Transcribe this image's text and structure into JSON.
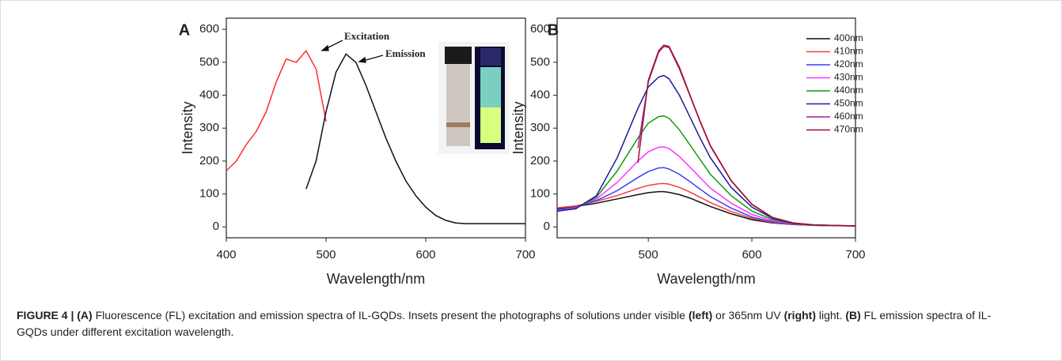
{
  "chart_data": [
    {
      "type": "line",
      "panel": "A",
      "xlabel": "Wavelength/nm",
      "ylabel": "Intensity",
      "x": [
        400,
        410,
        420,
        430,
        440,
        450,
        460,
        470,
        480,
        490,
        500,
        510,
        520,
        530,
        540,
        550,
        560,
        570,
        580,
        590,
        600,
        610,
        620,
        630,
        640,
        650,
        660,
        670,
        680,
        690,
        700
      ],
      "series": [
        {
          "name": "Excitation",
          "color": "#ff2a2a",
          "values": [
            170,
            200,
            250,
            290,
            350,
            440,
            510,
            500,
            535,
            480,
            320,
            null,
            null,
            null,
            null,
            null,
            null,
            null,
            null,
            null,
            null,
            null,
            null,
            null,
            null,
            null,
            null,
            null,
            null,
            null,
            null
          ]
        },
        {
          "name": "Emission",
          "color": "#111111",
          "values": [
            null,
            null,
            null,
            null,
            null,
            null,
            null,
            null,
            115,
            200,
            350,
            470,
            525,
            500,
            430,
            350,
            270,
            200,
            140,
            95,
            60,
            35,
            20,
            12,
            10,
            10,
            10,
            10,
            10,
            10,
            10
          ]
        }
      ],
      "xlim": [
        400,
        700
      ],
      "xticks": [
        400,
        500,
        600,
        700
      ],
      "ylim": [
        -33,
        634
      ],
      "yticks": [
        0,
        100,
        200,
        300,
        400,
        500,
        600
      ]
    },
    {
      "type": "line",
      "panel": "B",
      "xlabel": "Wavelength/nm",
      "ylabel": "Intensity",
      "x": [
        412,
        430,
        450,
        470,
        490,
        500,
        510,
        515,
        520,
        530,
        540,
        550,
        560,
        580,
        600,
        620,
        640,
        660,
        700
      ],
      "series": [
        {
          "name": "400nm",
          "color": "#111111",
          "values": [
            55,
            62,
            72,
            85,
            98,
            104,
            107,
            107,
            105,
            98,
            88,
            75,
            62,
            40,
            22,
            12,
            7,
            5,
            3
          ]
        },
        {
          "name": "410nm",
          "color": "#ff3b3b",
          "values": [
            58,
            64,
            78,
            95,
            117,
            126,
            131,
            132,
            130,
            120,
            106,
            90,
            74,
            47,
            26,
            13,
            7,
            5,
            3
          ]
        },
        {
          "name": "420nm",
          "color": "#3a3aff",
          "values": [
            52,
            60,
            80,
            110,
            150,
            168,
            179,
            180,
            176,
            160,
            138,
            115,
            92,
            57,
            30,
            15,
            8,
            5,
            3
          ]
        },
        {
          "name": "430nm",
          "color": "#ff33ff",
          "values": [
            50,
            58,
            85,
            135,
            200,
            228,
            242,
            243,
            238,
            214,
            182,
            150,
            118,
            72,
            38,
            18,
            9,
            5,
            3
          ]
        },
        {
          "name": "440nm",
          "color": "#109a10",
          "values": [
            48,
            56,
            90,
            170,
            270,
            315,
            335,
            337,
            330,
            295,
            250,
            205,
            160,
            95,
            48,
            22,
            10,
            5,
            3
          ]
        },
        {
          "name": "450nm",
          "color": "#1a1a9a",
          "values": [
            48,
            55,
            95,
            210,
            360,
            425,
            455,
            460,
            450,
            400,
            335,
            270,
            210,
            120,
            60,
            26,
            11,
            6,
            3
          ]
        },
        {
          "name": "460nm",
          "color": "#a020a0",
          "values": [
            null,
            null,
            null,
            null,
            240,
            440,
            530,
            548,
            545,
            480,
            400,
            320,
            245,
            140,
            68,
            28,
            12,
            6,
            3
          ]
        },
        {
          "name": "470nm",
          "color": "#a0102a",
          "values": [
            null,
            null,
            null,
            null,
            195,
            445,
            535,
            552,
            548,
            485,
            402,
            322,
            247,
            141,
            69,
            29,
            12,
            6,
            3
          ]
        }
      ],
      "xlim": [
        412,
        700
      ],
      "xticks": [
        500,
        600,
        700
      ],
      "ylim": [
        -33,
        634
      ],
      "yticks": [
        0,
        100,
        200,
        300,
        400,
        500,
        600
      ],
      "legend": "upper-right"
    }
  ],
  "caption": [
    {
      "text": "FIGURE 4 | (A)",
      "bold": true
    },
    {
      "text": " Fluorescence (FL) excitation and emission spectra of IL-GQDs. Insets present the photographs of solutions under visible ",
      "bold": false
    },
    {
      "text": "(left)",
      "bold": true
    },
    {
      "text": " or 365nm UV ",
      "bold": false
    },
    {
      "text": "(right)",
      "bold": true
    },
    {
      "text": " light. ",
      "bold": false
    },
    {
      "text": "(B)",
      "bold": true
    },
    {
      "text": " FL emission spectra of IL-GQDs under different excitation wavelength.",
      "bold": false
    }
  ]
}
